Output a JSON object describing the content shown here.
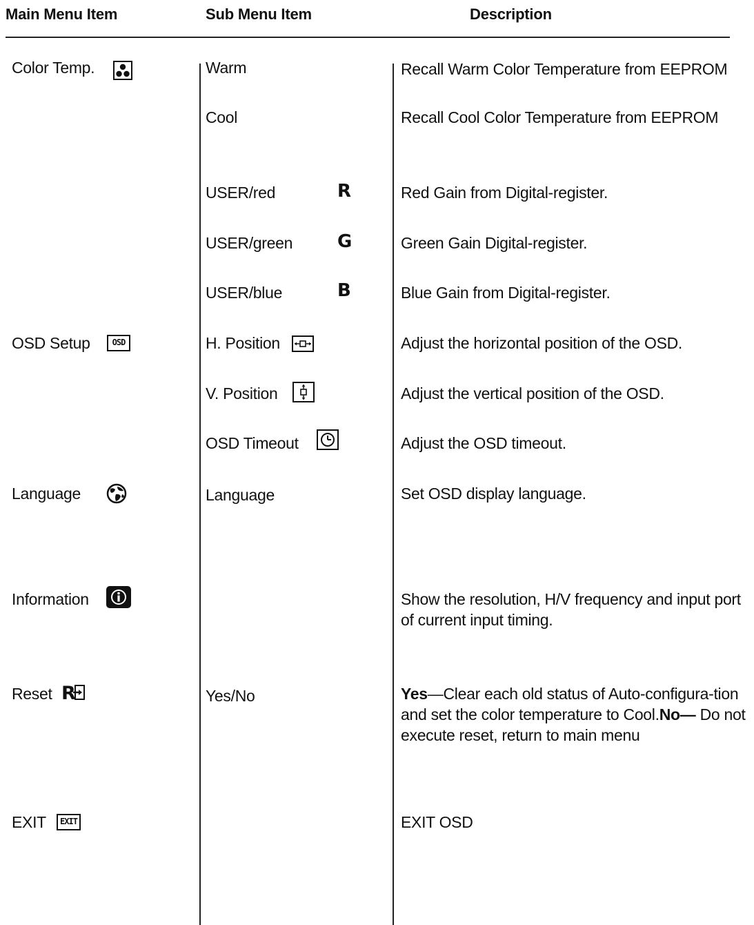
{
  "headers": {
    "main": "Main Menu Item",
    "sub": "Sub Menu Item",
    "desc": "Description"
  },
  "rows": {
    "color_temp": {
      "main": "Color Temp.",
      "main_icon": "color-dots-icon",
      "subs": [
        {
          "label": "Warm",
          "desc": "Recall Warm Color Temperature from EEPROM"
        },
        {
          "label": "Cool",
          "desc": "Recall Cool Color Temperature from EEPROM"
        },
        {
          "label": "USER/red",
          "letter": "R",
          "desc": "Red Gain from Digital-register."
        },
        {
          "label": "USER/green",
          "letter": "G",
          "desc": "Green Gain Digital-register."
        },
        {
          "label": "USER/blue",
          "letter": "B",
          "desc": "Blue Gain from Digital-register."
        }
      ]
    },
    "osd_setup": {
      "main": "OSD Setup",
      "main_icon": "osd-icon",
      "main_icon_text": "OSD",
      "subs": [
        {
          "label": "H. Position",
          "icon": "horizontal-position-icon",
          "desc": "Adjust the horizontal position of the OSD."
        },
        {
          "label": "V. Position",
          "icon": "vertical-position-icon",
          "desc": "Adjust the vertical position of the OSD."
        },
        {
          "label": "OSD Timeout",
          "icon": "clock-icon",
          "desc": "Adjust the OSD timeout."
        }
      ]
    },
    "language": {
      "main": "Language",
      "main_icon": "globe-icon",
      "sub": "Language",
      "desc": "Set OSD display language."
    },
    "information": {
      "main": "Information",
      "main_icon": "info-icon",
      "desc": "Show the resolution, H/V frequency and input port of current input timing."
    },
    "reset": {
      "main": "Reset",
      "main_icon": "reset-icon",
      "sub": "Yes/No",
      "desc_yes_label": "Yes",
      "desc_yes_text": "—Clear each old status of Auto-configura-tion and set the color temperature to Cool.",
      "desc_no_label": "No—",
      "desc_no_text": " Do not execute reset, return to main menu"
    },
    "exit": {
      "main": "EXIT",
      "main_icon": "exit-icon",
      "main_icon_text": "EXIT",
      "desc": "EXIT OSD"
    }
  }
}
